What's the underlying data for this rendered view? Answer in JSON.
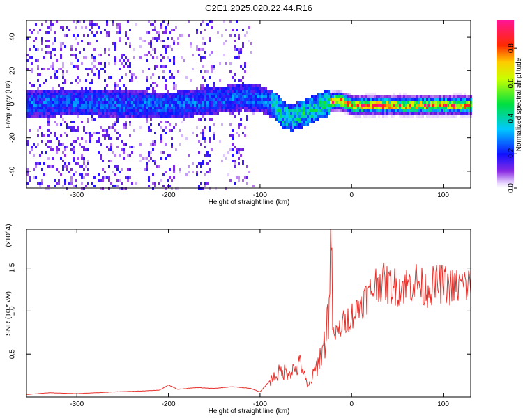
{
  "figure": {
    "title": "C2E1.2025.020.22.44.R16"
  },
  "chart_data": [
    {
      "type": "heatmap",
      "title": "C2E1.2025.020.22.44.R16",
      "xlabel": "Height of straight line (km)",
      "ylabel": "Frequency (Hz)",
      "xlim": [
        -355,
        130
      ],
      "ylim": [
        -50,
        50
      ],
      "xticks": [
        -300,
        -200,
        -100,
        0,
        100
      ],
      "yticks": [
        -40,
        -20,
        0,
        20,
        40
      ],
      "xtick_labels": [
        "-300",
        "-200",
        "-100",
        "0",
        "100"
      ],
      "ytick_labels": [
        "-40",
        "-20",
        "0",
        "20",
        "40"
      ],
      "colorbar": {
        "label": "Normalized spectral amplitude",
        "range": [
          0,
          0.96
        ],
        "ticks": [
          0.0,
          0.2,
          0.4,
          0.6,
          0.8
        ],
        "tick_labels": [
          "0.0",
          "0.2",
          "0.4",
          "0.6",
          "0.8"
        ],
        "colormap": "rainbow (white-violet-blue-cyan-green-yellow-red-magenta)"
      },
      "ridge_frequency": {
        "x": [
          -355,
          -300,
          -250,
          -200,
          -150,
          -120,
          -100,
          -85,
          -75,
          -65,
          -55,
          -45,
          -35,
          -25,
          -15,
          0,
          50,
          100,
          130
        ],
        "y": [
          1,
          2,
          1,
          0,
          3,
          5,
          4,
          0,
          -6,
          -7,
          -5,
          -3,
          0,
          2,
          3,
          0,
          0,
          0,
          0
        ]
      },
      "grid": false
    },
    {
      "type": "line",
      "xlabel": "Height of straight line (km)",
      "ylabel": "SNR (10 * v/v)",
      "y_multiplier_label": "(x10^4)",
      "xlim": [
        -355,
        130
      ],
      "ylim": [
        0,
        1.95
      ],
      "xticks": [
        -300,
        -200,
        -100,
        0,
        100
      ],
      "yticks": [
        0.5,
        1.0,
        1.5
      ],
      "xtick_labels": [
        "-300",
        "-200",
        "-100",
        "0",
        "100"
      ],
      "ytick_labels": [
        "0.5",
        "1.0",
        "1.5"
      ],
      "series": [
        {
          "color": "#e8302a",
          "x": [
            -355,
            -330,
            -300,
            -260,
            -230,
            -210,
            -200,
            -190,
            -170,
            -150,
            -130,
            -110,
            -100,
            -90,
            -80,
            -70,
            -62,
            -55,
            -48,
            -40,
            -35,
            -30,
            -25,
            -23,
            -20,
            -15,
            -10,
            -5,
            0,
            5,
            10,
            15,
            20,
            25,
            30,
            40,
            50,
            60,
            70,
            80,
            90,
            100,
            110,
            120,
            130
          ],
          "y": [
            0.03,
            0.05,
            0.04,
            0.06,
            0.07,
            0.08,
            0.14,
            0.09,
            0.11,
            0.1,
            0.12,
            0.1,
            0.06,
            0.18,
            0.28,
            0.3,
            0.32,
            0.4,
            0.1,
            0.3,
            0.45,
            0.6,
            1.0,
            1.9,
            0.7,
            0.75,
            0.85,
            0.9,
            0.95,
            1.0,
            1.1,
            1.15,
            1.2,
            1.3,
            1.35,
            1.3,
            1.28,
            1.3,
            1.35,
            1.25,
            1.3,
            1.32,
            1.27,
            1.3,
            1.3
          ]
        }
      ],
      "grid": false
    }
  ]
}
